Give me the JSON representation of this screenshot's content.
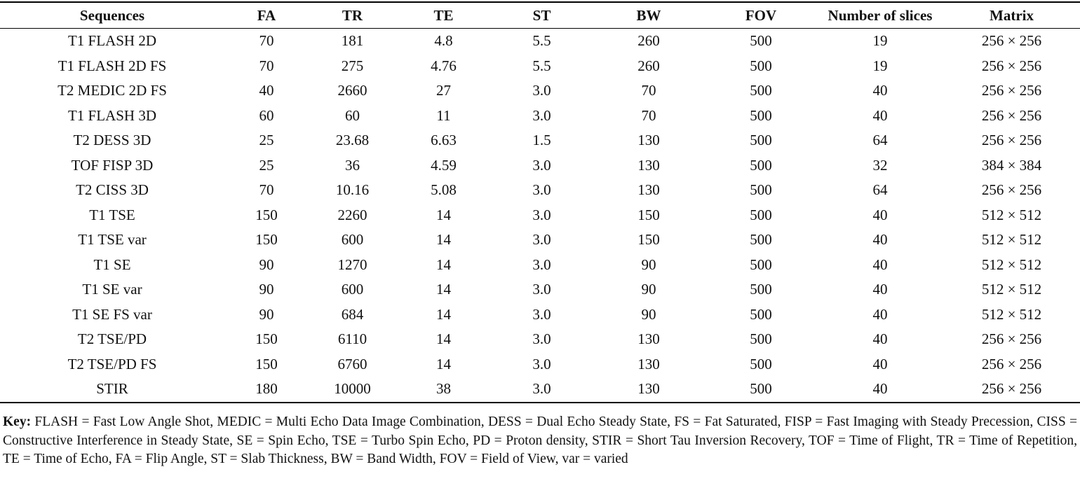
{
  "table": {
    "header": [
      "Sequences",
      "FA",
      "TR",
      "TE",
      "ST",
      "BW",
      "FOV",
      "Number of slices",
      "Matrix"
    ],
    "rows": [
      [
        "T1 FLASH 2D",
        "70",
        "181",
        "4.8",
        "5.5",
        "260",
        "500",
        "19",
        "256 × 256"
      ],
      [
        "T1 FLASH 2D FS",
        "70",
        "275",
        "4.76",
        "5.5",
        "260",
        "500",
        "19",
        "256 × 256"
      ],
      [
        "T2 MEDIC 2D FS",
        "40",
        "2660",
        "27",
        "3.0",
        "70",
        "500",
        "40",
        "256 × 256"
      ],
      [
        "T1 FLASH 3D",
        "60",
        "60",
        "11",
        "3.0",
        "70",
        "500",
        "40",
        "256 × 256"
      ],
      [
        "T2 DESS 3D",
        "25",
        "23.68",
        "6.63",
        "1.5",
        "130",
        "500",
        "64",
        "256 × 256"
      ],
      [
        "TOF FISP 3D",
        "25",
        "36",
        "4.59",
        "3.0",
        "130",
        "500",
        "32",
        "384 × 384"
      ],
      [
        "T2 CISS 3D",
        "70",
        "10.16",
        "5.08",
        "3.0",
        "130",
        "500",
        "64",
        "256 × 256"
      ],
      [
        "T1 TSE",
        "150",
        "2260",
        "14",
        "3.0",
        "150",
        "500",
        "40",
        "512 × 512"
      ],
      [
        "T1 TSE var",
        "150",
        "600",
        "14",
        "3.0",
        "150",
        "500",
        "40",
        "512 × 512"
      ],
      [
        "T1 SE",
        "90",
        "1270",
        "14",
        "3.0",
        "90",
        "500",
        "40",
        "512 × 512"
      ],
      [
        "T1 SE var",
        "90",
        "600",
        "14",
        "3.0",
        "90",
        "500",
        "40",
        "512 × 512"
      ],
      [
        "T1 SE FS var",
        "90",
        "684",
        "14",
        "3.0",
        "90",
        "500",
        "40",
        "512 × 512"
      ],
      [
        "T2 TSE/PD",
        "150",
        "6110",
        "14",
        "3.0",
        "130",
        "500",
        "40",
        "256 × 256"
      ],
      [
        "T2 TSE/PD FS",
        "150",
        "6760",
        "14",
        "3.0",
        "130",
        "500",
        "40",
        "256 × 256"
      ],
      [
        "STIR",
        "180",
        "10000",
        "38",
        "3.0",
        "130",
        "500",
        "40",
        "256 × 256"
      ]
    ]
  },
  "key": {
    "label": "Key:",
    "text": "FLASH = Fast Low Angle Shot, MEDIC = Multi Echo Data Image Combination, DESS = Dual Echo Steady State, FS = Fat Saturated, FISP = Fast Imaging with Steady Precession, CISS = Constructive Interference in Steady State, SE = Spin Echo, TSE = Turbo Spin Echo, PD = Proton density, STIR = Short Tau Inversion Recovery, TOF = Time of Flight, TR = Time of Repetition, TE = Time of Echo, FA = Flip Angle, ST = Slab Thickness, BW = Band Width, FOV = Field of View, var = varied"
  }
}
